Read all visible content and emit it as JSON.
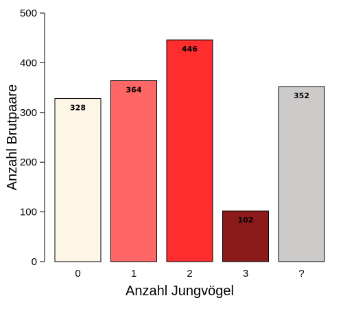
{
  "chart_data": {
    "type": "bar",
    "categories": [
      "0",
      "1",
      "2",
      "3",
      "?"
    ],
    "values": [
      328,
      364,
      446,
      102,
      352
    ],
    "data_labels": [
      "328",
      "364",
      "446",
      "102",
      "352"
    ],
    "colors": [
      "#fdf5e6",
      "#ff6666",
      "#ff2d2d",
      "#8b1a1a",
      "#cdcaca"
    ],
    "title": "",
    "xlabel": "Anzahl Jungvögel",
    "ylabel": "Anzahl Brutpaare",
    "ylim": [
      0,
      500
    ],
    "yticks": [
      0,
      100,
      200,
      300,
      400,
      500
    ],
    "grid": false
  }
}
